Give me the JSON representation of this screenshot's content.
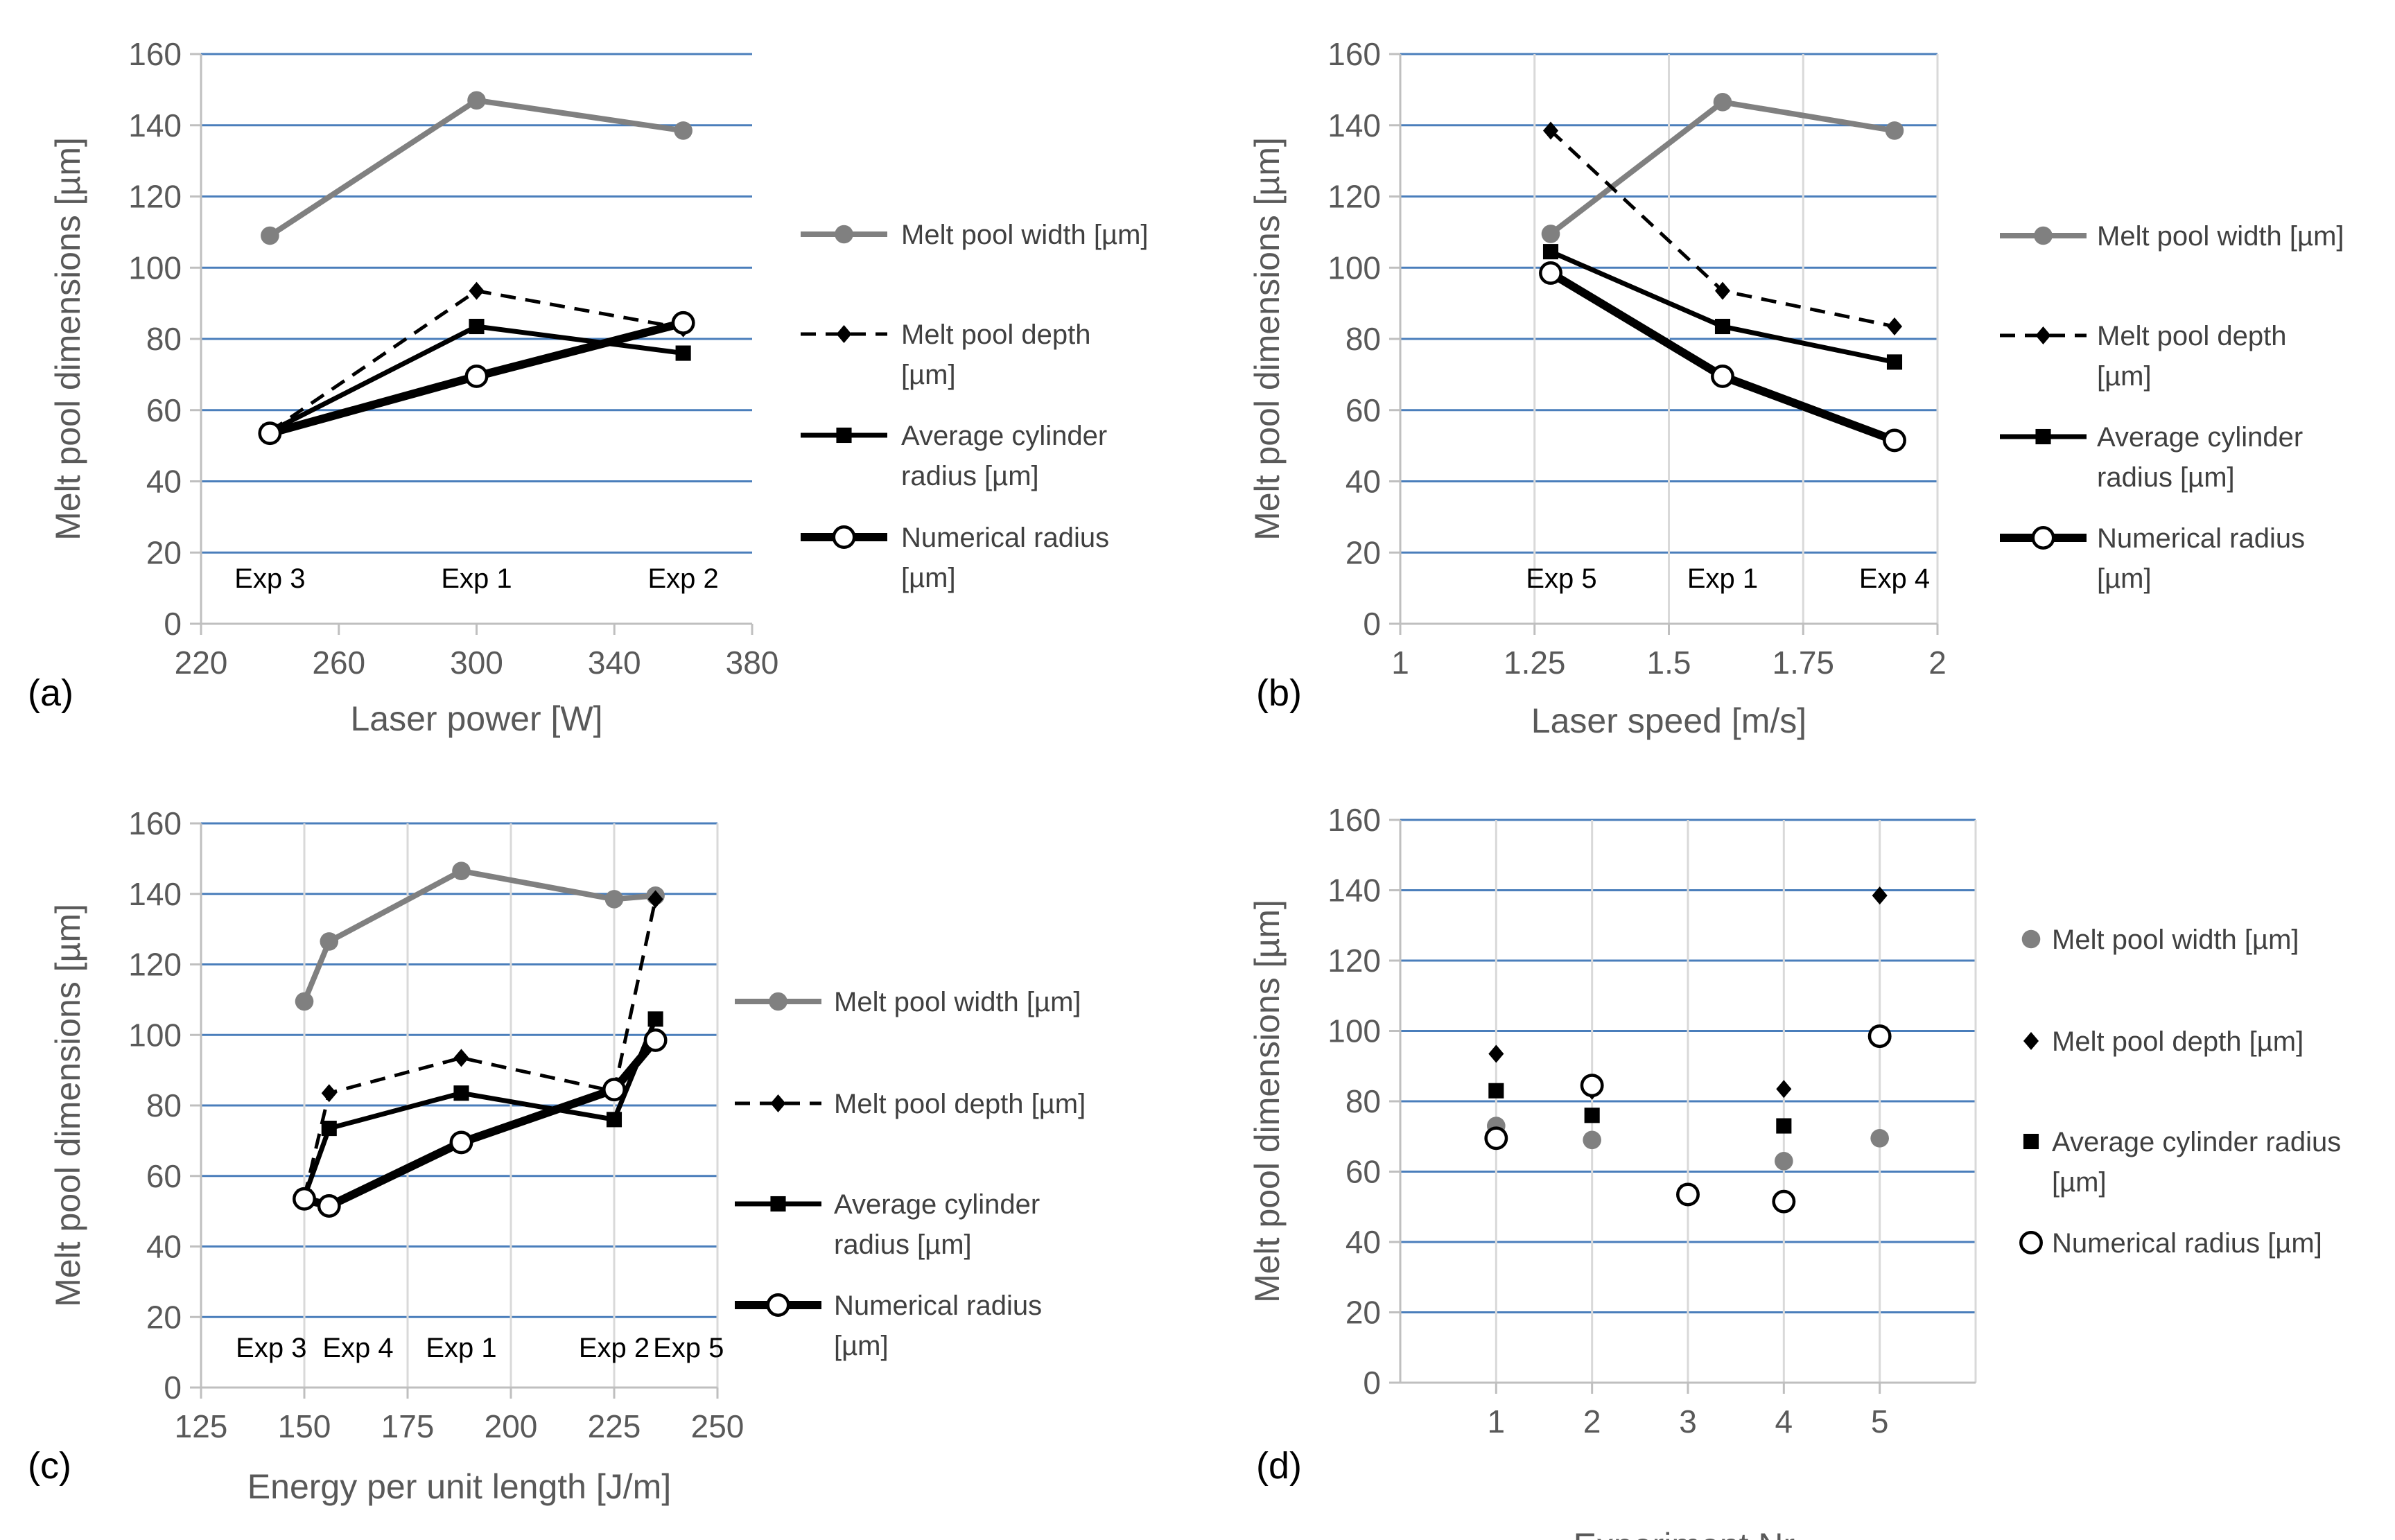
{
  "styles": {
    "width": {
      "color": "#808080",
      "lw": 8,
      "dash": "",
      "marker": "circle",
      "fill": "#808080"
    },
    "depth": {
      "color": "#000000",
      "lw": 5,
      "dash": "22,14",
      "marker": "diamond",
      "fill": "#000000"
    },
    "avg": {
      "color": "#000000",
      "lw": 7,
      "dash": "",
      "marker": "square",
      "fill": "#000000"
    },
    "num": {
      "color": "#000000",
      "lw": 12,
      "dash": "",
      "marker": "circle",
      "fill": "#ffffff"
    }
  },
  "chart_data": [
    {
      "type": "line",
      "panel_label": "(a)",
      "xlabel": "Laser power [W]",
      "ylabel": "Melt pool dimensions [µm]",
      "xlim": [
        220,
        380
      ],
      "ylim": [
        0,
        160
      ],
      "xticks": [
        220,
        260,
        300,
        340,
        380
      ],
      "yticks": [
        0,
        20,
        40,
        60,
        80,
        100,
        120,
        140,
        160
      ],
      "grid": "horizontal",
      "legend_position": "right",
      "annotations": [
        {
          "text": "Exp 3",
          "x": 240
        },
        {
          "text": "Exp 1",
          "x": 300
        },
        {
          "text": "Exp 2",
          "x": 360
        }
      ],
      "series": [
        {
          "name": "Melt pool width  [µm]",
          "style": "width",
          "x": [
            240,
            300,
            360
          ],
          "y": [
            109,
            147,
            138.5
          ]
        },
        {
          "name": "Melt pool depth [µm]",
          "legend_lines": [
            "Melt pool depth",
            "[µm]"
          ],
          "style": "depth",
          "x": [
            240,
            300,
            360
          ],
          "y": [
            54,
            93.5,
            83
          ]
        },
        {
          "name": "Average cylinder radius [µm]",
          "legend_lines": [
            "Average cylinder",
            "radius [µm]"
          ],
          "style": "avg",
          "x": [
            240,
            300,
            360
          ],
          "y": [
            54,
            83.5,
            76
          ]
        },
        {
          "name": "Numerical radius [µm]",
          "legend_lines": [
            "Numerical radius",
            "[µm]"
          ],
          "style": "num",
          "x": [
            240,
            300,
            360
          ],
          "y": [
            53.5,
            69.5,
            84.5
          ]
        }
      ]
    },
    {
      "type": "line",
      "panel_label": "(b)",
      "xlabel": "Laser speed [m/s]",
      "ylabel": "Melt pool dimensions [µm]",
      "xlim": [
        1,
        2
      ],
      "ylim": [
        0,
        160
      ],
      "xticks": [
        1,
        1.25,
        1.5,
        1.75,
        2
      ],
      "yticks": [
        0,
        20,
        40,
        60,
        80,
        100,
        120,
        140,
        160
      ],
      "grid": "both",
      "legend_position": "right",
      "annotations": [
        {
          "text": "Exp 5",
          "x": 1.3
        },
        {
          "text": "Exp 1",
          "x": 1.6
        },
        {
          "text": "Exp 4",
          "x": 1.92
        }
      ],
      "series": [
        {
          "name": "Melt pool width  [µm]",
          "style": "width",
          "x": [
            1.28,
            1.6,
            1.92
          ],
          "y": [
            109.5,
            146.5,
            138.5
          ]
        },
        {
          "name": "Melt pool depth [µm]",
          "legend_lines": [
            "Melt pool depth",
            "[µm]"
          ],
          "style": "depth",
          "x": [
            1.28,
            1.6,
            1.92
          ],
          "y": [
            138.5,
            93.5,
            83.5
          ]
        },
        {
          "name": "Average cylinder radius [µm]",
          "legend_lines": [
            "Average cylinder",
            "radius [µm]"
          ],
          "style": "avg",
          "x": [
            1.28,
            1.6,
            1.92
          ],
          "y": [
            104.5,
            83.5,
            73.5
          ]
        },
        {
          "name": "Numerical radius [µm]",
          "legend_lines": [
            "Numerical radius",
            "[µm]"
          ],
          "style": "num",
          "x": [
            1.28,
            1.6,
            1.92
          ],
          "y": [
            98.5,
            69.5,
            51.5
          ]
        }
      ]
    },
    {
      "type": "line",
      "panel_label": "(c)",
      "xlabel": "Energy per unit length [J/m]",
      "ylabel": "Melt pool dimensions [µm]",
      "xlim": [
        125,
        250
      ],
      "ylim": [
        0,
        160
      ],
      "xticks": [
        125,
        150,
        175,
        200,
        225,
        250
      ],
      "yticks": [
        0,
        20,
        40,
        60,
        80,
        100,
        120,
        140,
        160
      ],
      "grid": "both",
      "legend_position": "right",
      "annotations": [
        {
          "text": "Exp 3",
          "x": 142
        },
        {
          "text": "Exp 4",
          "x": 163
        },
        {
          "text": "Exp 1",
          "x": 188
        },
        {
          "text": "Exp 2",
          "x": 225
        },
        {
          "text": "Exp 5",
          "x": 243
        }
      ],
      "series": [
        {
          "name": "Melt pool width  [µm]",
          "style": "width",
          "x": [
            150,
            156,
            188,
            225,
            235
          ],
          "y": [
            109.5,
            126.5,
            146.5,
            138.5,
            139.5
          ]
        },
        {
          "name": "Melt pool depth [µm]",
          "style": "depth",
          "x": [
            150,
            156,
            188,
            225,
            235
          ],
          "y": [
            54,
            83.5,
            93.5,
            84,
            138.5
          ]
        },
        {
          "name": "Average cylinder radius [µm]",
          "legend_lines": [
            "Average cylinder",
            "radius [µm]"
          ],
          "style": "avg",
          "x": [
            150,
            156,
            188,
            225,
            235
          ],
          "y": [
            54,
            73.5,
            83.5,
            76,
            104.5
          ]
        },
        {
          "name": "Numerical radius [µm]",
          "legend_lines": [
            "Numerical radius",
            "[µm]"
          ],
          "style": "num",
          "x": [
            150,
            156,
            188,
            225,
            235
          ],
          "y": [
            53.5,
            51.5,
            69.5,
            84.5,
            98.5
          ]
        }
      ]
    },
    {
      "type": "scatter",
      "panel_label": "(d)",
      "xlabel": "Experiment Nr.",
      "ylabel": "Melt pool dimensions [µm]",
      "xlim": [
        0,
        6
      ],
      "ylim": [
        0,
        160
      ],
      "xticks": [
        1,
        2,
        3,
        4,
        5
      ],
      "vgrid": [
        0,
        1,
        2,
        3,
        4,
        5,
        6
      ],
      "yticks": [
        0,
        20,
        40,
        60,
        80,
        100,
        120,
        140,
        160
      ],
      "grid": "both",
      "legend_position": "right",
      "annotations": [],
      "series": [
        {
          "name": "Melt pool width  [µm]",
          "style": "width",
          "x": [
            1,
            2,
            3,
            4,
            5
          ],
          "y": [
            73,
            69,
            54,
            63,
            69.5
          ]
        },
        {
          "name": "Melt pool depth [µm]",
          "style": "depth",
          "x": [
            1,
            2,
            3,
            4,
            5
          ],
          "y": [
            93.5,
            83,
            54,
            83.5,
            138.5
          ]
        },
        {
          "name": "Average cylinder radius [µm]",
          "legend_lines": [
            "Average cylinder radius",
            "[µm]"
          ],
          "style": "avg",
          "x": [
            1,
            2,
            3,
            4,
            5
          ],
          "y": [
            83,
            76,
            54,
            73,
            99
          ]
        },
        {
          "name": "Numerical radius [µm]",
          "style": "num",
          "x": [
            1,
            2,
            3,
            4,
            5
          ],
          "y": [
            69.5,
            84.5,
            53.5,
            51.5,
            98.5
          ]
        }
      ]
    }
  ]
}
